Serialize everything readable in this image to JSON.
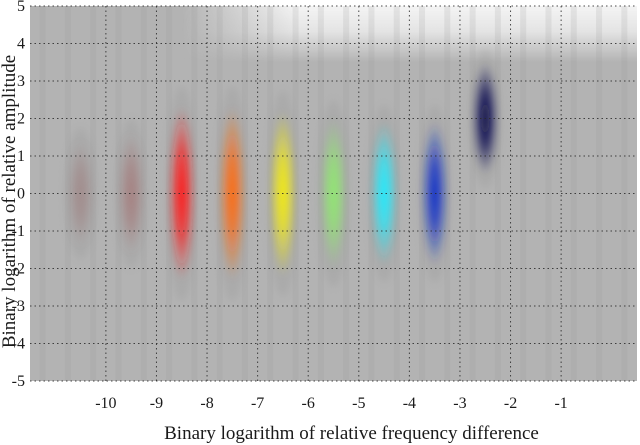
{
  "chart_data": {
    "type": "heatmap",
    "xlabel": "Binary logarithm of relative frequency difference",
    "ylabel": "Binary logarithm of relative amplitude",
    "xlim": [
      -11.5,
      0.5
    ],
    "ylim": [
      -5,
      5
    ],
    "x_ticks": [
      -10,
      -9,
      -8,
      -7,
      -6,
      -5,
      -4,
      -3,
      -2,
      -1
    ],
    "y_ticks": [
      -5,
      -4,
      -3,
      -2,
      -1,
      0,
      1,
      2,
      3,
      4,
      5
    ],
    "grid": true,
    "grid_style": "dotted",
    "background_color": "#b3b3b3",
    "top_band": {
      "y_from": 3.5,
      "color": "#f4f4f4",
      "x_from": -8.5
    },
    "blobs": [
      {
        "x": -10.5,
        "y": 0,
        "color": "#9a7272",
        "intensity": 0.55,
        "height": 1.4
      },
      {
        "x": -9.5,
        "y": 0,
        "color": "#a26a6a",
        "intensity": 0.65,
        "height": 1.6
      },
      {
        "x": -8.5,
        "y": 0,
        "color": "#ff1818",
        "intensity": 1.0,
        "height": 2.3
      },
      {
        "x": -7.5,
        "y": 0,
        "color": "#ff6a10",
        "intensity": 1.0,
        "height": 2.3
      },
      {
        "x": -6.5,
        "y": 0,
        "color": "#f4ec10",
        "intensity": 1.0,
        "height": 2.2
      },
      {
        "x": -5.5,
        "y": 0,
        "color": "#90e870",
        "intensity": 1.0,
        "height": 2.0
      },
      {
        "x": -4.5,
        "y": 0,
        "color": "#20ecff",
        "intensity": 1.0,
        "height": 1.9
      },
      {
        "x": -3.5,
        "y": 0,
        "color": "#1030c8",
        "intensity": 1.0,
        "height": 1.9
      },
      {
        "x": -2.5,
        "y": 2,
        "color": "#08084a",
        "intensity": 1.0,
        "height": 1.5
      }
    ]
  }
}
